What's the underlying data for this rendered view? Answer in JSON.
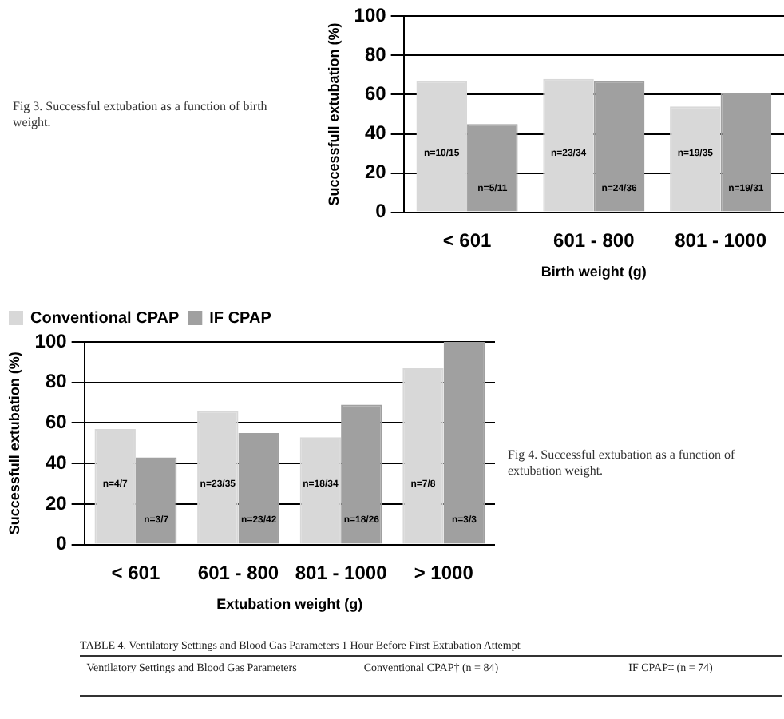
{
  "chart_data": [
    {
      "type": "bar",
      "xlabel": "Birth weight (g)",
      "ylabel": "Successfull extubation (%)",
      "categories": [
        "< 601",
        "601 - 800",
        "801 - 1000"
      ],
      "series": [
        {
          "color": "#d8d8d8",
          "values": [
            67,
            68,
            54
          ],
          "value_labels": [
            "n=10/15",
            "n=23/34",
            "n=19/35"
          ]
        },
        {
          "color": "#a0a0a0",
          "values": [
            45,
            67,
            61
          ],
          "value_labels": [
            "n=5/11",
            "n=24/36",
            "n=19/31"
          ]
        }
      ],
      "ylim": [
        0,
        100
      ],
      "yticks": [
        0,
        20,
        40,
        60,
        80,
        100
      ],
      "grid": "y",
      "legend": false,
      "annotations": [
        "Fig 3. Successful extubation as a function of birth weight."
      ]
    },
    {
      "type": "bar",
      "xlabel": "Extubation weight (g)",
      "ylabel": "Successfull extubation (%)",
      "categories": [
        "< 601",
        "601 - 800",
        "801 - 1000",
        "> 1000"
      ],
      "series": [
        {
          "name": "Conventional CPAP",
          "color": "#d8d8d8",
          "values": [
            57,
            66,
            53,
            87
          ],
          "value_labels": [
            "n=4/7",
            "n=23/35",
            "n=18/34",
            "n=7/8"
          ]
        },
        {
          "name": "IF CPAP",
          "color": "#a0a0a0",
          "values": [
            43,
            55,
            69,
            100
          ],
          "value_labels": [
            "n=3/7",
            "n=23/42",
            "n=18/26",
            "n=3/3"
          ]
        }
      ],
      "ylim": [
        0,
        100
      ],
      "yticks": [
        0,
        20,
        40,
        60,
        80,
        100
      ],
      "grid": "y",
      "legend": "top",
      "annotations": [
        "Fig 4. Successful extubation as a function of extubation weight."
      ]
    },
    {
      "type": "other",
      "title": "TABLE 4.     Ventilatory Settings and Blood Gas Parameters 1 Hour Before First Extubation Attempt",
      "annotations": [
        "Ventilatory Settings and Blood Gas Parameters",
        "Conventional CPAP† (n = 84)",
        "IF CPAP‡ (n = 74)"
      ]
    }
  ]
}
